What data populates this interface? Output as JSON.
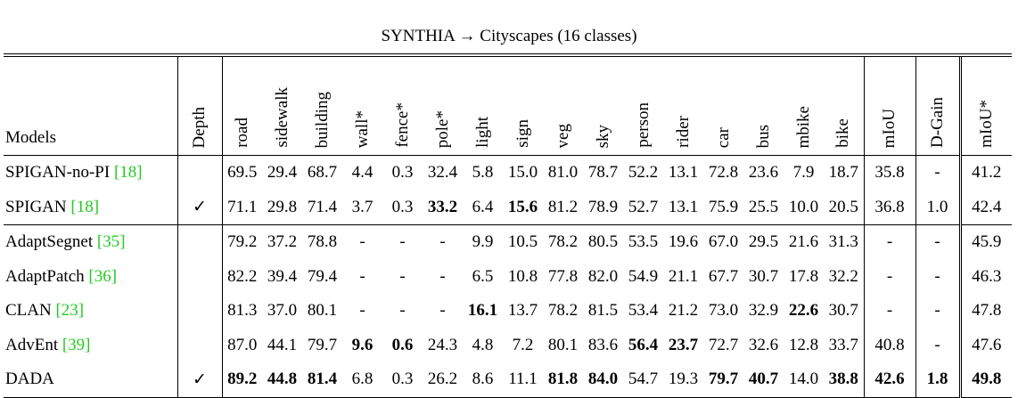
{
  "title": "SYNTHIA → Cityscapes (16 classes)",
  "table": {
    "columns": [
      "Models",
      "Depth",
      "road",
      "sidewalk",
      "building",
      "wall*",
      "fence*",
      "pole*",
      "light",
      "sign",
      "veg",
      "sky",
      "person",
      "rider",
      "car",
      "bus",
      "mbike",
      "bike",
      "mIoU",
      "D-Gain",
      "mIoU*"
    ],
    "groups": [
      {
        "rows": [
          {
            "model": "SPIGAN-no-PI",
            "ref": "[18]",
            "cells": [
              null,
              "69.5",
              "29.4",
              "68.7",
              "4.4",
              "0.3",
              "32.4",
              "5.8",
              "15.0",
              "81.0",
              "78.7",
              "52.2",
              "13.1",
              "72.8",
              "23.6",
              "7.9",
              "18.7",
              "35.8",
              "-",
              "41.2"
            ]
          },
          {
            "model": "SPIGAN",
            "ref": "[18]",
            "cells": [
              "✓",
              "71.1",
              "29.8",
              "71.4",
              "3.7",
              "0.3",
              {
                "text": "33.2",
                "bold": true
              },
              "6.4",
              {
                "text": "15.6",
                "bold": true
              },
              "81.2",
              "78.9",
              "52.7",
              "13.1",
              "75.9",
              "25.5",
              "10.0",
              "20.5",
              "36.8",
              "1.0",
              "42.4"
            ]
          }
        ]
      },
      {
        "rows": [
          {
            "model": "AdaptSegnet",
            "ref": "[35]",
            "cells": [
              null,
              "79.2",
              "37.2",
              "78.8",
              "-",
              "-",
              "-",
              "9.9",
              "10.5",
              "78.2",
              "80.5",
              "53.5",
              "19.6",
              "67.0",
              "29.5",
              "21.6",
              "31.3",
              "-",
              "-",
              "45.9"
            ]
          },
          {
            "model": "AdaptPatch",
            "ref": "[36]",
            "cells": [
              null,
              "82.2",
              "39.4",
              "79.4",
              "-",
              "-",
              "-",
              "6.5",
              "10.8",
              "77.8",
              "82.0",
              "54.9",
              "21.1",
              "67.7",
              "30.7",
              "17.8",
              "32.2",
              "-",
              "-",
              "46.3"
            ]
          },
          {
            "model": "CLAN",
            "ref": "[23]",
            "cells": [
              null,
              "81.3",
              "37.0",
              "80.1",
              "-",
              "-",
              "-",
              {
                "text": "16.1",
                "bold": true
              },
              "13.7",
              "78.2",
              "81.5",
              "53.4",
              "21.2",
              "73.0",
              "32.9",
              {
                "text": "22.6",
                "bold": true
              },
              "30.7",
              "-",
              "-",
              "47.8"
            ]
          },
          {
            "model": "AdvEnt",
            "ref": "[39]",
            "cells": [
              null,
              "87.0",
              "44.1",
              "79.7",
              {
                "text": "9.6",
                "bold": true
              },
              {
                "text": "0.6",
                "bold": true
              },
              "24.3",
              "4.8",
              "7.2",
              "80.1",
              "83.6",
              {
                "text": "56.4",
                "bold": true
              },
              {
                "text": "23.7",
                "bold": true
              },
              "72.7",
              "32.6",
              "12.8",
              "33.7",
              "40.8",
              "-",
              "47.6"
            ]
          },
          {
            "model": "DADA",
            "cells": [
              "✓",
              {
                "text": "89.2",
                "bold": true
              },
              {
                "text": "44.8",
                "bold": true
              },
              {
                "text": "81.4",
                "bold": true
              },
              "6.8",
              "0.3",
              "26.2",
              "8.6",
              "11.1",
              {
                "text": "81.8",
                "bold": true
              },
              {
                "text": "84.0",
                "bold": true
              },
              "54.7",
              "19.3",
              {
                "text": "79.7",
                "bold": true
              },
              {
                "text": "40.7",
                "bold": true
              },
              "14.0",
              {
                "text": "38.8",
                "bold": true
              },
              {
                "text": "42.6",
                "bold": true
              },
              {
                "text": "1.8",
                "bold": true
              },
              {
                "text": "49.8",
                "bold": true
              }
            ]
          }
        ]
      }
    ]
  }
}
